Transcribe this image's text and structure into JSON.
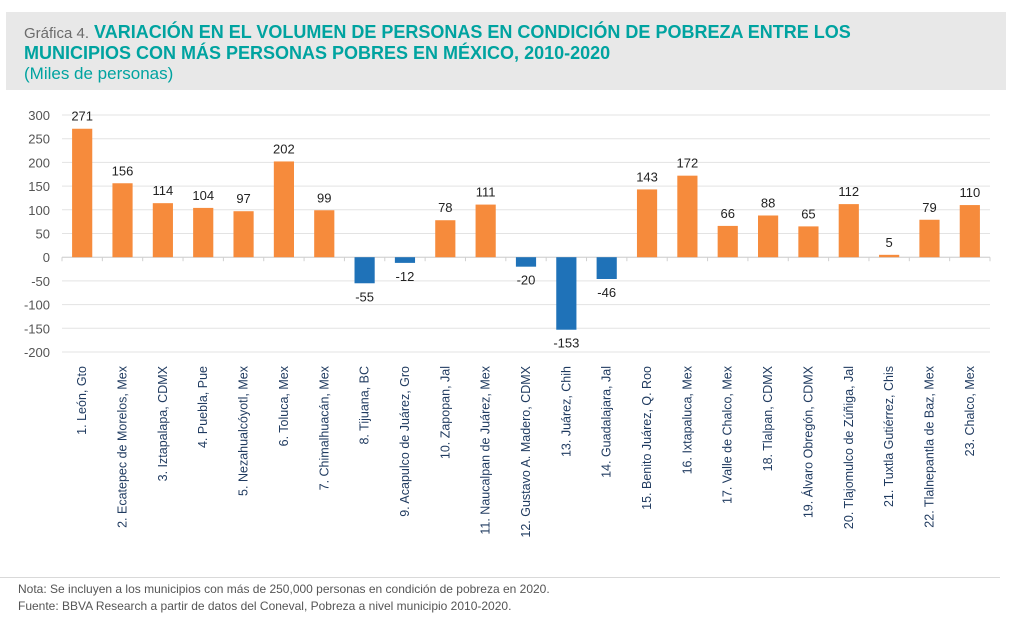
{
  "header": {
    "prefix": "Gráfica 4.",
    "title_line1": "VARIACIÓN EN EL VOLUMEN DE PERSONAS EN CONDICIÓN DE POBREZA ENTRE LOS",
    "title_line2": "MUNICIPIOS CON MÁS PERSONAS POBRES EN MÉXICO, 2010-2020",
    "subtitle": "(Miles de personas)"
  },
  "footer": {
    "note": "Nota: Se incluyen a los municipios con más de 250,000 personas en condición de pobreza en 2020.",
    "source": "Fuente: BBVA Research a partir de datos del Coneval, Pobreza a nivel municipio 2010-2020."
  },
  "colors": {
    "positive": "#f68b3c",
    "negative": "#1f72b8",
    "title": "#00a3a0"
  },
  "chart_data": {
    "type": "bar",
    "title": "VARIACIÓN EN EL VOLUMEN DE PERSONAS EN CONDICIÓN DE POBREZA ENTRE LOS MUNICIPIOS CON MÁS PERSONAS POBRES EN MÉXICO, 2010-2020",
    "subtitle": "(Miles de personas)",
    "xlabel": "",
    "ylabel": "",
    "ylim": [
      -200,
      300
    ],
    "yticks": [
      300,
      250,
      200,
      150,
      100,
      50,
      0,
      -50,
      -100,
      -150,
      -200
    ],
    "grid": true,
    "legend": "none",
    "categories": [
      "1. León, Gto",
      "2. Ecatepec de Morelos, Mex",
      "3. Iztapalapa, CDMX",
      "4. Puebla, Pue",
      "5. Nezahualcóyotl, Mex",
      "6. Toluca, Mex",
      "7. Chimalhuacán, Mex",
      "8. Tijuana, BC",
      "9. Acapulco de Juárez, Gro",
      "10. Zapopan, Jal",
      "11. Naucalpan de Juárez, Mex",
      "12. Gustavo A. Madero, CDMX",
      "13. Juárez, Chih",
      "14. Guadalajara, Jal",
      "15. Benito Juárez, Q. Roo",
      "16. Ixtapaluca, Mex",
      "17. Valle de Chalco, Mex",
      "18. Tlalpan, CDMX",
      "19. Álvaro Obregón, CDMX",
      "20. Tlajomulco de Zúñiga, Jal",
      "21. Tuxtla Gutiérrez, Chis",
      "22. Tlalnepantla de Baz, Mex",
      "23. Chalco, Mex"
    ],
    "values": [
      271,
      156,
      114,
      104,
      97,
      202,
      99,
      -55,
      -12,
      78,
      111,
      -20,
      -153,
      -46,
      143,
      172,
      66,
      88,
      65,
      112,
      5,
      79,
      110
    ]
  }
}
